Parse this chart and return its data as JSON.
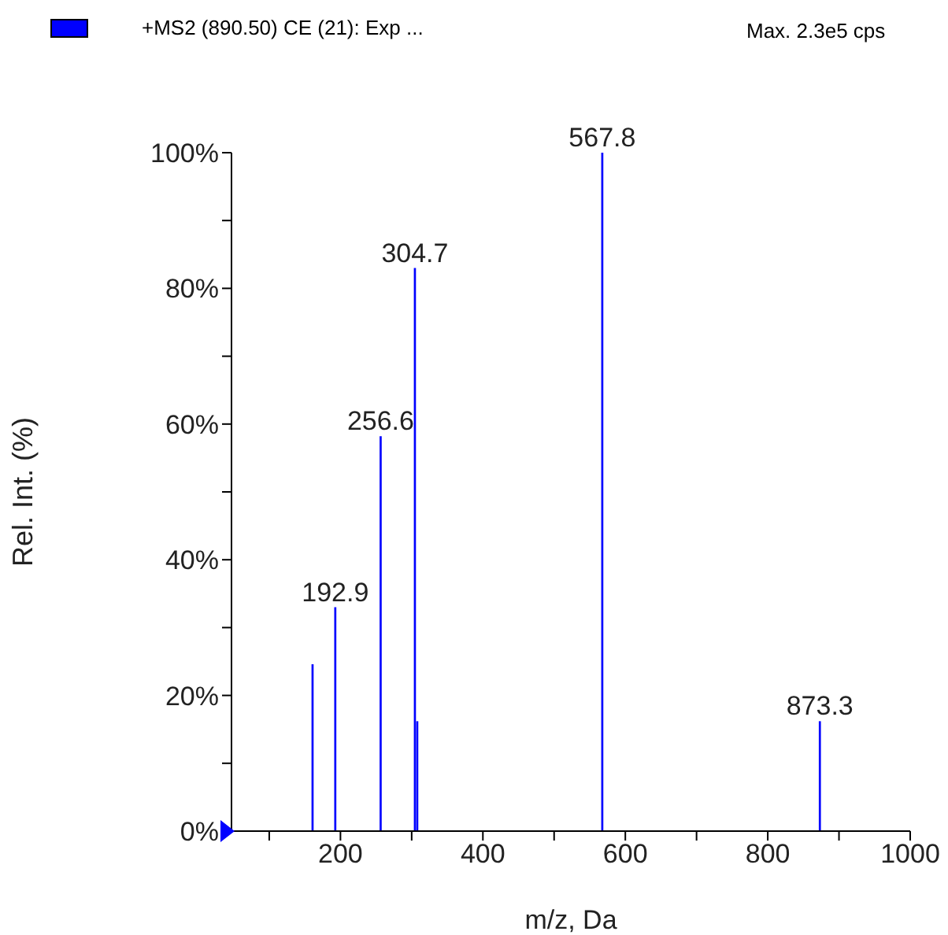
{
  "chart_data": {
    "type": "bar",
    "xlabel": "m/z, Da",
    "ylabel": "Rel. Int. (%)",
    "annotations": [
      "Max. 2.3e5 cps"
    ],
    "x": [
      161,
      192.9,
      256.6,
      304.7,
      308,
      567.8,
      873.3
    ],
    "series": [
      {
        "name": "+MS2 (890.50) CE (21): Exp ...",
        "color": "#0000ff",
        "values": [
          24.6,
          33,
          58.2,
          83,
          16.2,
          100,
          16.2
        ]
      }
    ],
    "value_labels": [
      null,
      "192.9",
      "256.6",
      "304.7",
      null,
      "567.8",
      "873.3"
    ],
    "xlim": [
      47,
      1000
    ],
    "xticks": [
      {
        "value": 100,
        "label": null
      },
      200,
      {
        "value": 300,
        "label": null
      },
      400,
      {
        "value": 500,
        "label": null
      },
      600,
      {
        "value": 700,
        "label": null
      },
      800,
      {
        "value": 900,
        "label": null
      },
      1000
    ],
    "ylim": [
      0,
      100
    ],
    "yticks": [
      {
        "value": 0,
        "label": "0%"
      },
      {
        "value": 10,
        "label": null
      },
      {
        "value": 20,
        "label": "20%"
      },
      {
        "value": 30,
        "label": null
      },
      {
        "value": 40,
        "label": "40%"
      },
      {
        "value": 50,
        "label": null
      },
      {
        "value": 60,
        "label": "60%"
      },
      {
        "value": 70,
        "label": null
      },
      {
        "value": 80,
        "label": "80%"
      },
      {
        "value": 90,
        "label": null
      },
      {
        "value": 100,
        "label": "100%"
      }
    ],
    "grid": false,
    "legend": "top left"
  }
}
